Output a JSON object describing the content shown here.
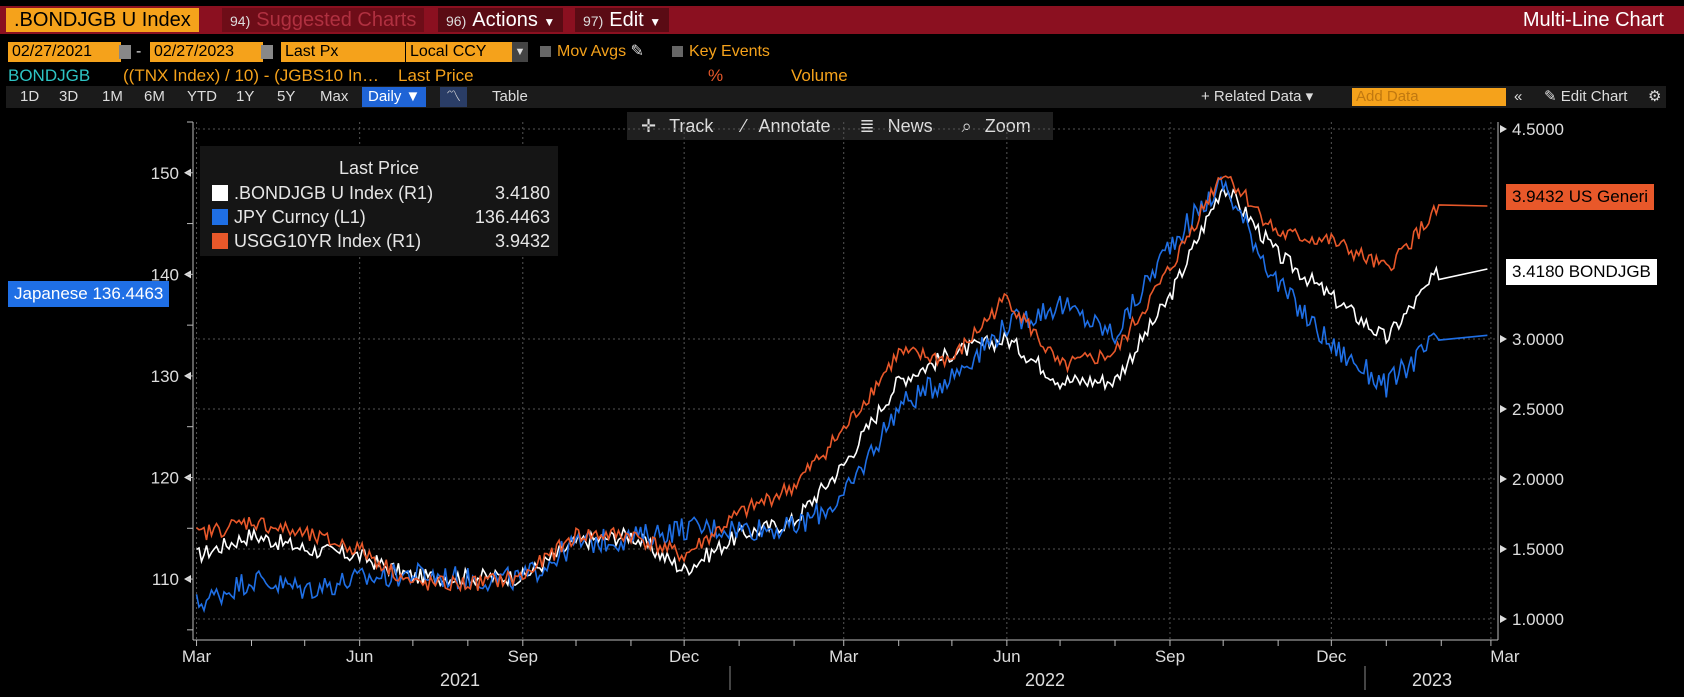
{
  "header": {
    "ticker": ".BONDJGB U Index",
    "suggested_num": "94)",
    "suggested_label": "Suggested Charts",
    "actions_num": "96)",
    "actions_label": "Actions",
    "edit_num": "97)",
    "edit_label": "Edit",
    "chart_type": "Multi-Line Chart",
    "dropdown_icon": "caret-down-icon"
  },
  "controls": {
    "start_date": "02/27/2021",
    "end_date": "02/27/2023",
    "date_separator": "-",
    "field": "Last Px",
    "currency": "Local CCY",
    "mov_avgs": "Mov Avgs",
    "key_events": "Key Events"
  },
  "info_row": {
    "ticker": "BONDJGB",
    "formula": "((TNX Index) / 10) - (JGBS10 In…",
    "last_price": "Last Price",
    "pct": "%",
    "volume": "Volume"
  },
  "periods": [
    "1D",
    "3D",
    "1M",
    "6M",
    "YTD",
    "1Y",
    "5Y",
    "Max"
  ],
  "frequency": "Daily ▼",
  "table_label": "Table",
  "related_data": "+ Related Data ▾",
  "add_data_placeholder": "Add Data",
  "edit_chart": "Edit Chart",
  "toolbar": {
    "track": "Track",
    "annotate": "Annotate",
    "news": "News",
    "zoom": "Zoom"
  },
  "colors": {
    "white": "#ffffff",
    "blue": "#1f6fe5",
    "orange": "#e8582a",
    "accent": "#f5a21b",
    "header": "#8b1020"
  },
  "chart_data": {
    "type": "line",
    "title": "",
    "legend": {
      "title": "Last Price",
      "placement": "top-left",
      "entries": [
        {
          "name": ".BONDJGB U Index",
          "axis": "(R1)",
          "value": "3.4180"
        },
        {
          "name": "JPY Curncy",
          "axis": "(L1)",
          "value": "136.4463"
        },
        {
          "name": "USGG10YR Index",
          "axis": "(R1)",
          "value": "3.9432"
        }
      ]
    },
    "x_ticks": [
      "Mar",
      "Jun",
      "Sep",
      "Dec",
      "Mar",
      "Jun",
      "Sep",
      "Dec",
      "Mar"
    ],
    "years": [
      "2021",
      "2022",
      "2023"
    ],
    "y_left": {
      "ticks": [
        "110",
        "120",
        "130",
        "140",
        "150"
      ],
      "range": [
        104,
        155
      ]
    },
    "y_right": {
      "ticks": [
        "1.0000",
        "1.5000",
        "2.0000",
        "2.5000",
        "3.0000",
        "4.5000"
      ],
      "range": [
        0.85,
        4.55
      ]
    },
    "grid": true,
    "tags": {
      "left": "Japanese 136.4463",
      "right_orange": "3.9432 US Generi",
      "right_white": "3.4180 BONDJGB"
    },
    "series": [
      {
        "name": ".BONDJGB U Index",
        "axis": "right",
        "color": "#ffffff",
        "x": [
          "2021-03",
          "2021-04",
          "2021-05",
          "2021-06",
          "2021-07",
          "2021-08",
          "2021-09",
          "2021-10",
          "2021-11",
          "2021-12",
          "2022-01",
          "2022-02",
          "2022-03",
          "2022-04",
          "2022-05",
          "2022-06",
          "2022-07",
          "2022-08",
          "2022-09",
          "2022-10",
          "2022-11",
          "2022-12",
          "2023-01",
          "2023-02"
        ],
        "values": [
          1.45,
          1.6,
          1.5,
          1.45,
          1.3,
          1.3,
          1.3,
          1.55,
          1.6,
          1.35,
          1.6,
          1.7,
          2.1,
          2.7,
          2.9,
          3.0,
          2.7,
          2.7,
          3.3,
          4.1,
          3.6,
          3.3,
          3.0,
          3.5
        ]
      },
      {
        "name": "JPY Curncy",
        "axis": "left",
        "color": "#1f6fe5",
        "x": [
          "2021-03",
          "2021-04",
          "2021-05",
          "2021-06",
          "2021-07",
          "2021-08",
          "2021-09",
          "2021-10",
          "2021-11",
          "2021-12",
          "2022-01",
          "2022-02",
          "2022-03",
          "2022-04",
          "2022-05",
          "2022-06",
          "2022-07",
          "2022-08",
          "2022-09",
          "2022-10",
          "2022-11",
          "2022-12",
          "2023-01",
          "2023-02"
        ],
        "values": [
          107.5,
          110,
          109,
          110,
          110.5,
          110,
          110,
          113.5,
          114,
          115,
          115,
          115,
          118,
          127,
          130,
          135,
          137,
          134,
          143,
          149,
          139,
          133,
          129,
          134
        ]
      },
      {
        "name": "USGG10YR Index",
        "axis": "right",
        "color": "#e8582a",
        "x": [
          "2021-03",
          "2021-04",
          "2021-05",
          "2021-06",
          "2021-07",
          "2021-08",
          "2021-09",
          "2021-10",
          "2021-11",
          "2021-12",
          "2022-01",
          "2022-02",
          "2022-03",
          "2022-04",
          "2022-05",
          "2022-06",
          "2022-07",
          "2022-08",
          "2022-09",
          "2022-10",
          "2022-11",
          "2022-12",
          "2023-01",
          "2023-02"
        ],
        "values": [
          1.6,
          1.7,
          1.6,
          1.5,
          1.25,
          1.25,
          1.3,
          1.6,
          1.6,
          1.45,
          1.75,
          1.95,
          2.35,
          2.9,
          2.85,
          3.3,
          2.8,
          2.9,
          3.5,
          4.2,
          3.75,
          3.7,
          3.5,
          3.95
        ]
      }
    ]
  }
}
